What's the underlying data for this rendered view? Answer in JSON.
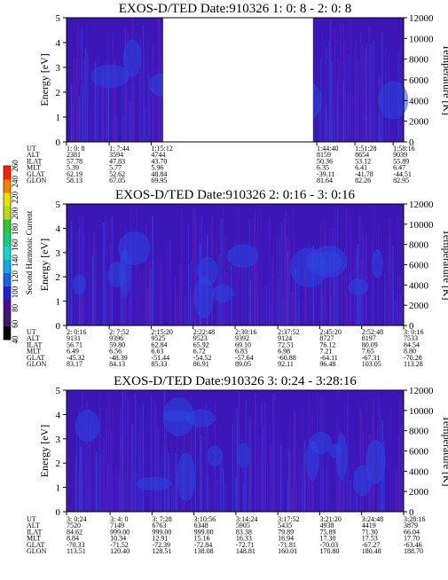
{
  "colors": {
    "background_field": "#3b17b8",
    "enhanced_field": "#2a45e0",
    "gap": "#ffffff",
    "colorbar": [
      "#000000",
      "#3a1a6a",
      "#4b0a9a",
      "#2020d0",
      "#1565e8",
      "#10a8f0",
      "#12d8d0",
      "#10d080",
      "#30c830",
      "#b0e010",
      "#f0e000",
      "#ff8000",
      "#ff2000"
    ]
  },
  "colorbar": {
    "label": "Second Harmonic Current",
    "ticks": [
      "40",
      "60",
      "80",
      "100",
      "120",
      "140",
      "160",
      "180",
      "200",
      "220",
      "240",
      "260"
    ]
  },
  "chart_data": [
    {
      "type": "heatmap",
      "title": "EXOS-D/TED   Date:910326  1: 0: 8 - 2: 0: 8",
      "ylabel": "Energy [eV]",
      "ylabel_right": "Temperature [K]",
      "ylim": [
        0,
        5
      ],
      "ylim_right": [
        0,
        12000
      ],
      "yticks": [
        "0",
        "1",
        "2",
        "3",
        "4",
        "5"
      ],
      "yticks_right": [
        "0",
        "2000",
        "4000",
        "6000",
        "8000",
        "10000",
        "12000"
      ],
      "time_range": [
        "1: 0: 8",
        "2: 0: 8"
      ],
      "data_gaps": [
        [
          "1:17:20",
          "1:44:00"
        ]
      ],
      "ephemeris": {
        "labels": [
          "UT",
          "ALT",
          "ILAT",
          "MLT",
          "GLAT",
          "GLON"
        ],
        "columns": [
          [
            "1: 0: 8",
            "2381",
            "57.78",
            "5.39",
            "62.19",
            "58.13"
          ],
          [
            "1: 7:44",
            "3594",
            "47.83",
            "5.77",
            "52.62",
            "67.05"
          ],
          [
            "1:15:12",
            "4744",
            "43.70",
            "5.96",
            "48.84",
            "69.95"
          ],
          [
            "1:44:40",
            "8159",
            "50.36",
            "6.35",
            "-39.11",
            "81.64"
          ],
          [
            "1:51:28",
            "8654",
            "53.12",
            "6.41",
            "-41.78",
            "82.26"
          ],
          [
            "1:58:16",
            "9039",
            "55.89",
            "6.47",
            "-44.51",
            "82.95"
          ]
        ]
      }
    },
    {
      "type": "heatmap",
      "title": "EXOS-D/TED   Date:910326  2: 0:16 - 3: 0:16",
      "ylabel": "Energy [eV]",
      "ylabel_right": "Temperature [K]",
      "ylim": [
        0,
        5
      ],
      "ylim_right": [
        0,
        12000
      ],
      "yticks": [
        "0",
        "1",
        "2",
        "3",
        "4",
        "5"
      ],
      "yticks_right": [
        "0",
        "2000",
        "4000",
        "6000",
        "8000",
        "10000",
        "12000"
      ],
      "time_range": [
        "2: 0:16",
        "3: 0:16"
      ],
      "ephemeris": {
        "labels": [
          "UT",
          "ALT",
          "ILAT",
          "MLT",
          "GLAT",
          "GLON"
        ],
        "columns": [
          [
            "2: 0:16",
            "9131",
            "56.71",
            "6.49",
            "-45.32",
            "83.17"
          ],
          [
            "2: 7:52",
            "9396",
            "59.80",
            "6.56",
            "-48.39",
            "84.13"
          ],
          [
            "2:15:20",
            "9525",
            "62.84",
            "6.63",
            "-51.44",
            "85.33"
          ],
          [
            "2:22:48",
            "9523",
            "65.92",
            "6.72",
            "-54.52",
            "86.91"
          ],
          [
            "2:30:16",
            "9392",
            "69.10",
            "6.83",
            "-57.64",
            "89.05"
          ],
          [
            "2:37:52",
            "9124",
            "72.51",
            "6.98",
            "-60.88",
            "92.11"
          ],
          [
            "2:45:20",
            "8727",
            "76.12",
            "7.21",
            "-64.11",
            "96.48"
          ],
          [
            "2:52:48",
            "8197",
            "80.09",
            "7.65",
            "-67.31",
            "103.05"
          ],
          [
            "3: 0:16",
            "7533",
            "84.54",
            "8.80",
            "-70.28",
            "113.28"
          ]
        ]
      }
    },
    {
      "type": "heatmap",
      "title": "EXOS-D/TED   Date:910326  3: 0:24 - 3:28:16",
      "ylabel": "Energy [eV]",
      "ylabel_right": "Temperature [K]",
      "ylim": [
        0,
        5
      ],
      "ylim_right": [
        0,
        12000
      ],
      "yticks": [
        "0",
        "1",
        "2",
        "3",
        "4",
        "5"
      ],
      "yticks_right": [
        "0",
        "2000",
        "4000",
        "6000",
        "8000",
        "10000",
        "12000"
      ],
      "time_range": [
        "3: 0:24",
        "3:28:16"
      ],
      "ephemeris": {
        "labels": [
          "UT",
          "ALT",
          "ILAT",
          "MLT",
          "GLAT",
          "GLON"
        ],
        "columns": [
          [
            "3: 0:24",
            "7520",
            "84.62",
            "8.84",
            "-70.33",
            "113.51"
          ],
          [
            "3: 4: 0",
            "7149",
            "999.00",
            "10.34",
            "-71.52",
            "120.40"
          ],
          [
            "3: 7:28",
            "6763",
            "999.00",
            "12.91",
            "-72.39",
            "128.51"
          ],
          [
            "3:10:56",
            "6348",
            "999.00",
            "15.16",
            "-72.84",
            "138.08"
          ],
          [
            "3:14:24",
            "5905",
            "83.38",
            "16.33",
            "-72.71",
            "148.81"
          ],
          [
            "3:17:52",
            "5435",
            "79.89",
            "16.94",
            "-71.81",
            "160.01"
          ],
          [
            "3:21:20",
            "4938",
            "75.89",
            "17.30",
            "-70.03",
            "170.80"
          ],
          [
            "3:24:48",
            "4419",
            "71.30",
            "17.53",
            "-67.27",
            "180.48"
          ],
          [
            "3:28:16",
            "3879",
            "66.04",
            "17.70",
            "-63.46",
            "188.70"
          ]
        ]
      }
    }
  ]
}
